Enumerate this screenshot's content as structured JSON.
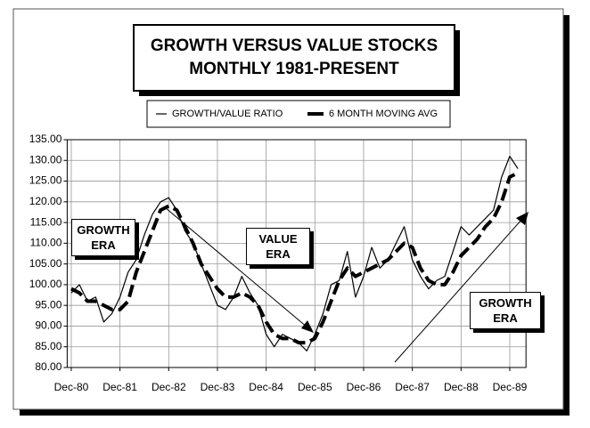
{
  "chart_data": {
    "type": "line",
    "title": "GROWTH VERSUS VALUE STOCKS",
    "subtitle": "MONTHLY 1981-PRESENT",
    "x": [
      0,
      2,
      4,
      6,
      8,
      10,
      12,
      14,
      16,
      18,
      20,
      22,
      24,
      26,
      28,
      30,
      32,
      34,
      36,
      38,
      40,
      42,
      44,
      46,
      48,
      50,
      52,
      54,
      56,
      58,
      60,
      62,
      64,
      66,
      68,
      70,
      72,
      74,
      76,
      78,
      80,
      82,
      84,
      86,
      88,
      90,
      92,
      94,
      96,
      98,
      100,
      102,
      104,
      106,
      108,
      110
    ],
    "series": [
      {
        "name": "GROWTH/VALUE RATIO",
        "color": "#000000",
        "values": [
          98,
          100,
          96,
          97,
          91,
          93,
          97,
          103,
          106,
          112,
          117,
          120,
          121,
          118,
          113,
          110,
          105,
          100,
          95,
          94,
          97,
          102,
          98,
          95,
          88,
          85,
          88,
          87,
          86,
          84,
          88,
          93,
          100,
          101,
          108,
          97,
          102,
          109,
          104,
          106,
          110,
          114,
          106,
          102,
          99,
          101,
          102,
          108,
          114,
          112,
          114,
          116,
          118,
          126,
          131,
          128
        ]
      },
      {
        "name": "6 MONTH MOVING AVG",
        "color": "#000000",
        "values": [
          99,
          98,
          96,
          96,
          95,
          94,
          94,
          96,
          103,
          108,
          113,
          118,
          119,
          118,
          114,
          110,
          105,
          102,
          99,
          97,
          97,
          98,
          97,
          95,
          91,
          88,
          87,
          87,
          86,
          86,
          87,
          91,
          96,
          101,
          104,
          102,
          103,
          104,
          105,
          106,
          108,
          110,
          109,
          104,
          101,
          100,
          100,
          103,
          107,
          109,
          111,
          114,
          116,
          120,
          126,
          127
        ]
      }
    ],
    "xlim": [
      -1,
      112
    ],
    "xticks": [
      {
        "value": 0,
        "label": "Dec-80"
      },
      {
        "value": 12,
        "label": "Dec-81"
      },
      {
        "value": 24,
        "label": "Dec-82"
      },
      {
        "value": 36,
        "label": "Dec-83"
      },
      {
        "value": 48,
        "label": "Dec-84"
      },
      {
        "value": 60,
        "label": "Dec-85"
      },
      {
        "value": 72,
        "label": "Dec-86"
      },
      {
        "value": 84,
        "label": "Dec-87"
      },
      {
        "value": 96,
        "label": "Dec-88"
      },
      {
        "value": 108,
        "label": "Dec-89"
      }
    ],
    "ylim": [
      80,
      135
    ],
    "yticks": [
      {
        "value": 80,
        "label": "80.00"
      },
      {
        "value": 85,
        "label": "85.00"
      },
      {
        "value": 90,
        "label": "90.00"
      },
      {
        "value": 95,
        "label": "95.00"
      },
      {
        "value": 100,
        "label": "100.00"
      },
      {
        "value": 105,
        "label": "105.00"
      },
      {
        "value": 110,
        "label": "110.00"
      },
      {
        "value": 115,
        "label": "115.00"
      },
      {
        "value": 120,
        "label": "120.00"
      },
      {
        "value": 125,
        "label": "125.00"
      },
      {
        "value": 130,
        "label": "130.00"
      },
      {
        "value": 135,
        "label": "135.00"
      }
    ],
    "grid": true,
    "annotations": [
      {
        "text": "GROWTH ERA"
      },
      {
        "text": "VALUE ERA"
      },
      {
        "text": "GROWTH ERA"
      }
    ]
  }
}
